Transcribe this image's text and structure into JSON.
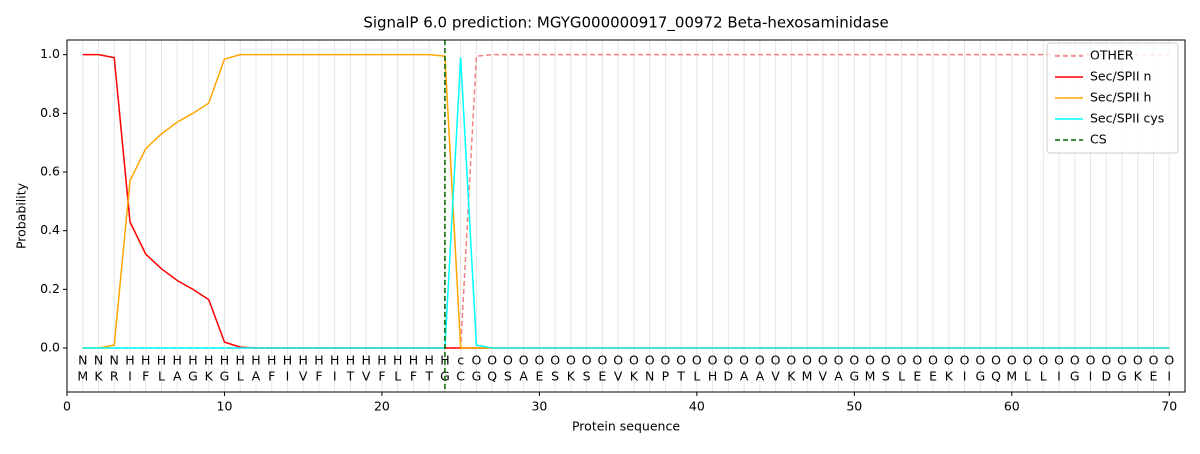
{
  "chart_data": {
    "type": "line",
    "title": "SignalP 6.0 prediction: MGYG000000917_00972 Beta-hexosaminidase",
    "x_label": "Protein sequence",
    "y_label": "Probability",
    "xlim": [
      0,
      71
    ],
    "ylim": [
      -0.15,
      1.05
    ],
    "xticks": [
      0,
      10,
      20,
      30,
      40,
      50,
      60,
      70
    ],
    "yticks": [
      {
        "value": 0,
        "label": "0.0"
      },
      {
        "value": 0.2,
        "label": "0.2"
      },
      {
        "value": 0.4,
        "label": "0.4"
      },
      {
        "value": 0.6,
        "label": "0.6"
      },
      {
        "value": 0.8,
        "label": "0.8"
      },
      {
        "value": 1,
        "label": "1.0"
      }
    ],
    "x": [
      1,
      2,
      3,
      4,
      5,
      6,
      7,
      8,
      9,
      10,
      11,
      12,
      13,
      14,
      15,
      16,
      17,
      18,
      19,
      20,
      21,
      22,
      23,
      24,
      25,
      26,
      27,
      28,
      29,
      30,
      31,
      32,
      33,
      34,
      35,
      36,
      37,
      38,
      39,
      40,
      41,
      42,
      43,
      44,
      45,
      46,
      47,
      48,
      49,
      50,
      51,
      52,
      53,
      54,
      55,
      56,
      57,
      58,
      59,
      60,
      61,
      62,
      63,
      64,
      65,
      66,
      67,
      68,
      69,
      70
    ],
    "sequence": [
      "M",
      "K",
      "R",
      "I",
      "F",
      "L",
      "A",
      "G",
      "K",
      "G",
      "L",
      "A",
      "F",
      "I",
      "V",
      "F",
      "I",
      "T",
      "V",
      "F",
      "L",
      "F",
      "T",
      "G",
      "C",
      "G",
      "Q",
      "S",
      "A",
      "E",
      "S",
      "K",
      "S",
      "E",
      "V",
      "K",
      "N",
      "P",
      "T",
      "L",
      "H",
      "D",
      "A",
      "A",
      "V",
      "K",
      "M",
      "V",
      "A",
      "G",
      "M",
      "S",
      "L",
      "E",
      "E",
      "K",
      "I",
      "G",
      "Q",
      "M",
      "L",
      "L",
      "I",
      "G",
      "I",
      "D",
      "G",
      "K",
      "E",
      "I"
    ],
    "region_labels": [
      "N",
      "N",
      "N",
      "H",
      "H",
      "H",
      "H",
      "H",
      "H",
      "H",
      "H",
      "H",
      "H",
      "H",
      "H",
      "H",
      "H",
      "H",
      "H",
      "H",
      "H",
      "H",
      "H",
      "H",
      "c",
      "O",
      "O",
      "O",
      "O",
      "O",
      "O",
      "O",
      "O",
      "O",
      "O",
      "O",
      "O",
      "O",
      "O",
      "O",
      "O",
      "O",
      "O",
      "O",
      "O",
      "O",
      "O",
      "O",
      "O",
      "O",
      "O",
      "O",
      "O",
      "O",
      "O",
      "O",
      "O",
      "O",
      "O",
      "O",
      "O",
      "O",
      "O",
      "O",
      "O",
      "O",
      "O",
      "O",
      "O",
      "O"
    ],
    "label_colors": {
      "N": "#ff0000",
      "H": "#ffa500",
      "c": "#00ffff",
      "O": "#808080"
    },
    "series": [
      {
        "name": "OTHER",
        "color": "#f08080",
        "dash": true,
        "values": [
          0,
          0,
          0,
          0,
          0,
          0,
          0,
          0,
          0,
          0,
          0,
          0,
          0,
          0,
          0,
          0,
          0,
          0,
          0,
          0,
          0,
          0,
          0,
          0,
          0,
          0.995,
          1,
          1,
          1,
          1,
          1,
          1,
          1,
          1,
          1,
          1,
          1,
          1,
          1,
          1,
          1,
          1,
          1,
          1,
          1,
          1,
          1,
          1,
          1,
          1,
          1,
          1,
          1,
          1,
          1,
          1,
          1,
          1,
          1,
          1,
          1,
          1,
          1,
          1,
          1,
          1,
          1,
          1,
          1,
          1
        ]
      },
      {
        "name": "Sec/SPII n",
        "color": "#ff0000",
        "values": [
          1,
          1,
          0.99,
          0.43,
          0.32,
          0.27,
          0.23,
          0.2,
          0.165,
          0.02,
          0.003,
          0,
          0,
          0,
          0,
          0,
          0,
          0,
          0,
          0,
          0,
          0,
          0,
          0,
          0,
          0,
          0,
          0,
          0,
          0,
          0,
          0,
          0,
          0,
          0,
          0,
          0,
          0,
          0,
          0,
          0,
          0,
          0,
          0,
          0,
          0,
          0,
          0,
          0,
          0,
          0,
          0,
          0,
          0,
          0,
          0,
          0,
          0,
          0,
          0,
          0,
          0,
          0,
          0,
          0,
          0,
          0,
          0,
          0,
          0
        ]
      },
      {
        "name": "Sec/SPII h",
        "color": "#ffa500",
        "values": [
          0,
          0,
          0.01,
          0.57,
          0.68,
          0.73,
          0.77,
          0.8,
          0.835,
          0.985,
          1,
          1,
          1,
          1,
          1,
          1,
          1,
          1,
          1,
          1,
          1,
          1,
          1,
          0.995,
          0,
          0,
          0,
          0,
          0,
          0,
          0,
          0,
          0,
          0,
          0,
          0,
          0,
          0,
          0,
          0,
          0,
          0,
          0,
          0,
          0,
          0,
          0,
          0,
          0,
          0,
          0,
          0,
          0,
          0,
          0,
          0,
          0,
          0,
          0,
          0,
          0,
          0,
          0,
          0,
          0,
          0,
          0,
          0,
          0,
          0
        ]
      },
      {
        "name": "Sec/SPII cys",
        "color": "#00ffff",
        "values": [
          0,
          0,
          0,
          0,
          0,
          0,
          0,
          0,
          0,
          0,
          0,
          0,
          0,
          0,
          0,
          0,
          0,
          0,
          0,
          0,
          0,
          0,
          0,
          0,
          0.99,
          0.01,
          0,
          0,
          0,
          0,
          0,
          0,
          0,
          0,
          0,
          0,
          0,
          0,
          0,
          0,
          0,
          0,
          0,
          0,
          0,
          0,
          0,
          0,
          0,
          0,
          0,
          0,
          0,
          0,
          0,
          0,
          0,
          0,
          0,
          0,
          0,
          0,
          0,
          0,
          0,
          0,
          0,
          0,
          0,
          0
        ]
      }
    ],
    "cs": {
      "name": "CS",
      "x": 24,
      "color": "#006400"
    }
  }
}
